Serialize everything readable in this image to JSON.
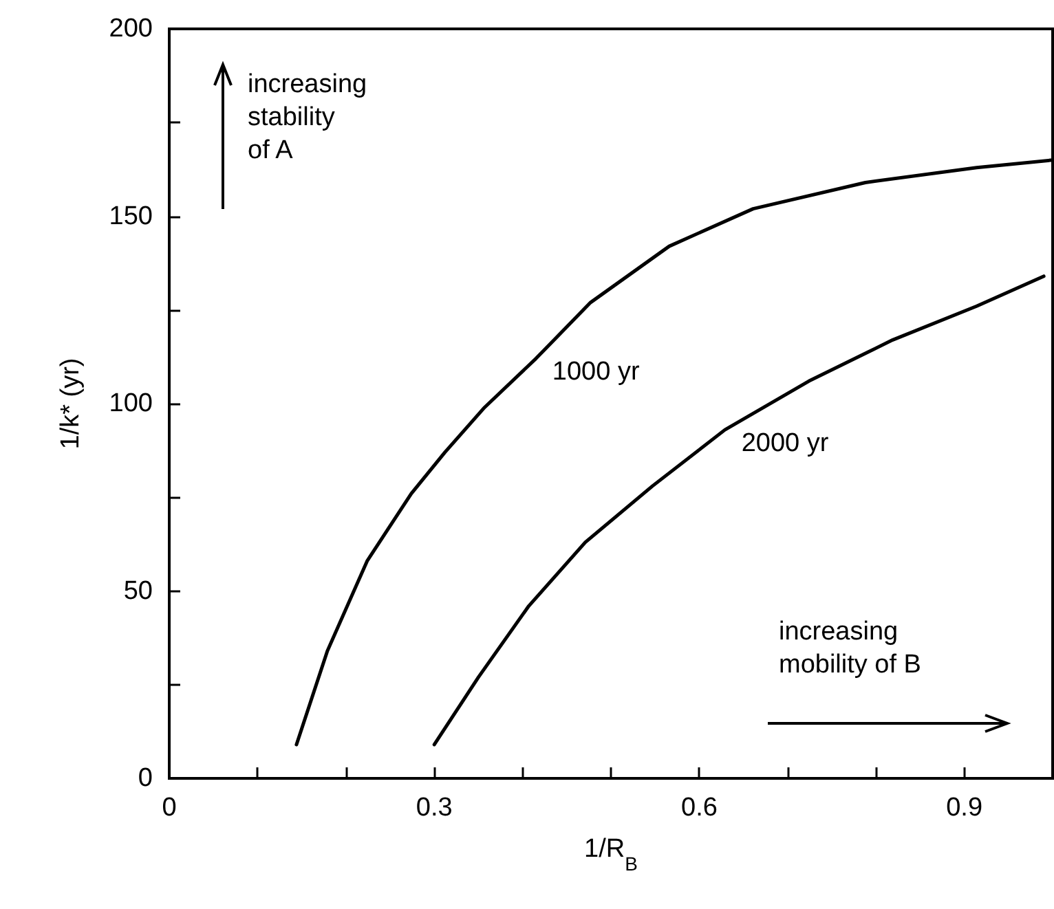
{
  "chart_data": {
    "type": "line",
    "xlabel": "1/R$_{B}$",
    "ylabel": "1/k* (yr)",
    "xlim": [
      0,
      1
    ],
    "xticks": [
      0,
      {
        "value": 0.1,
        "label": null
      },
      {
        "value": 0.2,
        "label": null
      },
      0.3,
      {
        "value": 0.4,
        "label": null
      },
      {
        "value": 0.5,
        "label": null
      },
      0.6,
      {
        "value": 0.7,
        "label": null
      },
      {
        "value": 0.8,
        "label": null
      },
      0.9
    ],
    "ylim": [
      0,
      200
    ],
    "yticks": [
      0,
      {
        "value": 25,
        "label": null
      },
      50,
      {
        "value": 75,
        "label": null
      },
      100,
      {
        "value": 125,
        "label": null
      },
      150,
      {
        "value": 175,
        "label": null
      },
      200
    ],
    "grid": false,
    "legend": false,
    "marker": "none",
    "line_style": "solid",
    "series": [
      {
        "name": "1000 yr",
        "color": "#000000",
        "x": [
          0.144,
          0.179,
          0.224,
          0.274,
          0.312,
          0.357,
          0.415,
          0.477,
          0.566,
          0.661,
          0.788,
          0.914,
          1.0
        ],
        "values": [
          9,
          34,
          58,
          76,
          87,
          99,
          112,
          127,
          142,
          152,
          159,
          163,
          165
        ]
      },
      {
        "name": "2000 yr",
        "color": "#000000",
        "x": [
          0.3,
          0.35,
          0.407,
          0.471,
          0.547,
          0.629,
          0.724,
          0.819,
          0.914,
          0.99
        ],
        "values": [
          9,
          27,
          46,
          63,
          78,
          93,
          106,
          117,
          126,
          134
        ]
      }
    ],
    "annotations": [
      "increasing\nstability\nof A",
      "increasing\nmobility of B"
    ]
  }
}
